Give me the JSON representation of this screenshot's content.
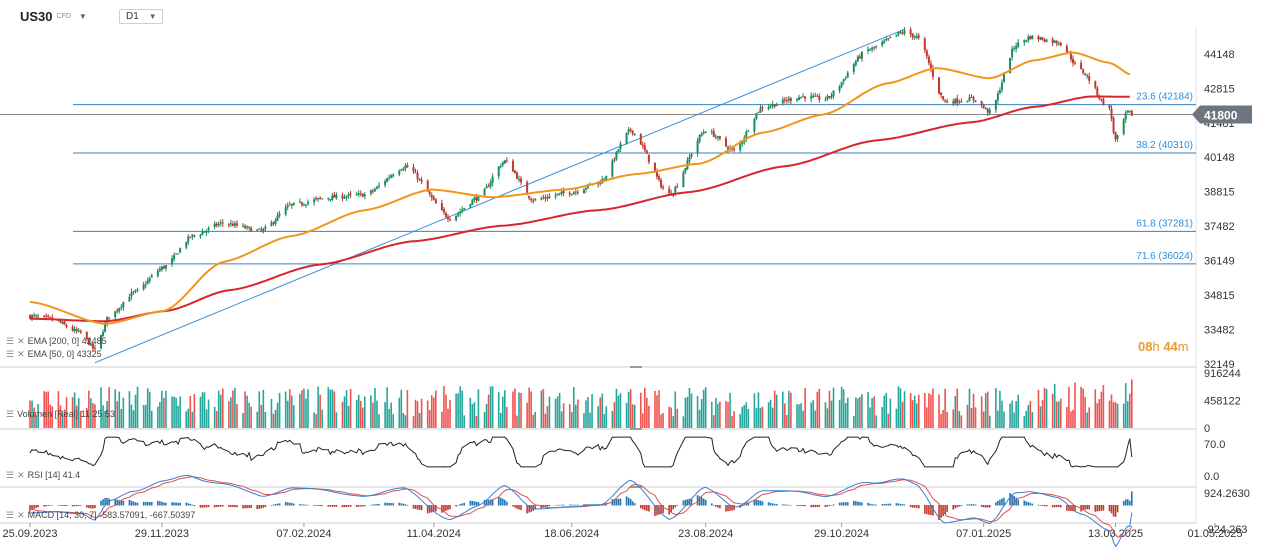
{
  "header": {
    "symbol": "US30",
    "symbol_type": "CFD",
    "timeframe": "D1"
  },
  "countdown": {
    "hours": "08",
    "h_unit": "h",
    "minutes": "44",
    "m_unit": "m"
  },
  "legends": {
    "ema200": "EMA [200, 0]  42485",
    "ema50": "EMA [50, 0]  43325",
    "volume": "Volumen [Real]  11 25 53",
    "rsi": "RSI [14]  41.4",
    "macd": "MACD [14, 30, 7]  -583.57091,  -667.50397"
  },
  "colors": {
    "ema50": "#f2951f",
    "ema200": "#d8262c",
    "trend": "#3a8fd9",
    "fib": "#3a80c0",
    "up": "#26a69a",
    "down": "#ef5350",
    "price_tag": "#6b7680"
  },
  "chart_data": [
    {
      "type": "candlestick",
      "symbol": "US30",
      "timeframe": "D1",
      "x_ticks": [
        "25.09.2023",
        "29.11.2023",
        "07.02.2024",
        "11.04.2024",
        "18.06.2024",
        "23.08.2024",
        "29.10.2024",
        "07.01.2025",
        "13.03.2025",
        "01.05.2025"
      ],
      "y_ticks": [
        44148,
        42815,
        41481,
        40148,
        38815,
        37482,
        36149,
        34815,
        33482,
        32149
      ],
      "last_price": 41800,
      "price_anchors": [
        {
          "date": "2023-09-25",
          "close": 34000
        },
        {
          "date": "2023-10-05",
          "close": 33900
        },
        {
          "date": "2023-10-20",
          "close": 33350
        },
        {
          "date": "2023-10-27",
          "close": 32700
        },
        {
          "date": "2023-11-03",
          "close": 34000
        },
        {
          "date": "2023-11-15",
          "close": 34900
        },
        {
          "date": "2023-11-30",
          "close": 35900
        },
        {
          "date": "2023-12-14",
          "close": 37100
        },
        {
          "date": "2023-12-29",
          "close": 37600
        },
        {
          "date": "2024-01-17",
          "close": 37300
        },
        {
          "date": "2024-02-01",
          "close": 38300
        },
        {
          "date": "2024-02-20",
          "close": 38600
        },
        {
          "date": "2024-03-08",
          "close": 38700
        },
        {
          "date": "2024-03-28",
          "close": 39800
        },
        {
          "date": "2024-04-19",
          "close": 37800
        },
        {
          "date": "2024-05-03",
          "close": 38600
        },
        {
          "date": "2024-05-16",
          "close": 40000
        },
        {
          "date": "2024-05-30",
          "close": 38500
        },
        {
          "date": "2024-06-18",
          "close": 38800
        },
        {
          "date": "2024-07-02",
          "close": 39200
        },
        {
          "date": "2024-07-17",
          "close": 41200
        },
        {
          "date": "2024-08-05",
          "close": 38700
        },
        {
          "date": "2024-08-23",
          "close": 41200
        },
        {
          "date": "2024-09-06",
          "close": 40400
        },
        {
          "date": "2024-09-20",
          "close": 42100
        },
        {
          "date": "2024-10-10",
          "close": 42500
        },
        {
          "date": "2024-10-21",
          "close": 42400
        },
        {
          "date": "2024-11-11",
          "close": 44300
        },
        {
          "date": "2024-11-29",
          "close": 45000
        },
        {
          "date": "2024-12-05",
          "close": 44800
        },
        {
          "date": "2024-12-19",
          "close": 42300
        },
        {
          "date": "2025-01-02",
          "close": 42400
        },
        {
          "date": "2025-01-10",
          "close": 41900
        },
        {
          "date": "2025-01-23",
          "close": 44500
        },
        {
          "date": "2025-01-30",
          "close": 44800
        },
        {
          "date": "2025-02-13",
          "close": 44600
        },
        {
          "date": "2025-02-24",
          "close": 43500
        },
        {
          "date": "2025-03-10",
          "close": 42000
        },
        {
          "date": "2025-03-13",
          "close": 40800
        },
        {
          "date": "2025-03-19",
          "close": 41900
        },
        {
          "date": "2025-03-21",
          "close": 41800
        }
      ],
      "ema50_anchors": [
        {
          "date": "2023-09-25",
          "value": 34550
        },
        {
          "date": "2023-11-01",
          "value": 33700
        },
        {
          "date": "2023-11-30",
          "value": 34200
        },
        {
          "date": "2023-12-29",
          "value": 36100
        },
        {
          "date": "2024-02-01",
          "value": 37100
        },
        {
          "date": "2024-03-08",
          "value": 38100
        },
        {
          "date": "2024-04-10",
          "value": 38900
        },
        {
          "date": "2024-05-10",
          "value": 38600
        },
        {
          "date": "2024-06-15",
          "value": 38900
        },
        {
          "date": "2024-07-20",
          "value": 39500
        },
        {
          "date": "2024-08-20",
          "value": 39900
        },
        {
          "date": "2024-09-20",
          "value": 41100
        },
        {
          "date": "2024-10-20",
          "value": 41800
        },
        {
          "date": "2024-11-20",
          "value": 43000
        },
        {
          "date": "2024-12-15",
          "value": 43600
        },
        {
          "date": "2025-01-10",
          "value": 43200
        },
        {
          "date": "2025-02-01",
          "value": 43900
        },
        {
          "date": "2025-02-20",
          "value": 44200
        },
        {
          "date": "2025-03-10",
          "value": 43800
        },
        {
          "date": "2025-03-21",
          "value": 43325
        }
      ],
      "ema200_anchors": [
        {
          "date": "2023-09-25",
          "value": 33900
        },
        {
          "date": "2023-11-01",
          "value": 33800
        },
        {
          "date": "2023-12-01",
          "value": 34200
        },
        {
          "date": "2024-01-01",
          "value": 35000
        },
        {
          "date": "2024-02-15",
          "value": 36000
        },
        {
          "date": "2024-04-01",
          "value": 36900
        },
        {
          "date": "2024-05-15",
          "value": 37500
        },
        {
          "date": "2024-07-01",
          "value": 38100
        },
        {
          "date": "2024-08-15",
          "value": 38800
        },
        {
          "date": "2024-10-01",
          "value": 39800
        },
        {
          "date": "2024-11-15",
          "value": 40800
        },
        {
          "date": "2025-01-01",
          "value": 41500
        },
        {
          "date": "2025-02-01",
          "value": 42100
        },
        {
          "date": "2025-03-01",
          "value": 42500
        },
        {
          "date": "2025-03-21",
          "value": 42485
        }
      ],
      "fib_levels": [
        {
          "label": "23.6 (42184)",
          "value": 42184
        },
        {
          "label": "38.2 (40310)",
          "value": 40310
        },
        {
          "label": "61.8 (37281)",
          "value": 37281
        },
        {
          "label": "71.6 (36024)",
          "value": 36024
        }
      ],
      "trendline": [
        {
          "date": "2023-10-27",
          "value": 32200
        },
        {
          "date": "2024-11-29",
          "value": 45100
        }
      ],
      "horizontal_price_line": 41800
    },
    {
      "type": "bar",
      "name": "Volumen",
      "y_ticks": [
        916244,
        458122,
        0
      ]
    },
    {
      "type": "line",
      "name": "RSI",
      "y_ticks": [
        70.0,
        0.0
      ],
      "last_value": 41.4
    },
    {
      "type": "line",
      "name": "MACD",
      "y_ticks": [
        924.263,
        -924.263
      ],
      "y_tick_labels": [
        "924.2630",
        "-924.263"
      ],
      "last_values": [
        -583.57091,
        -667.50397
      ]
    }
  ]
}
